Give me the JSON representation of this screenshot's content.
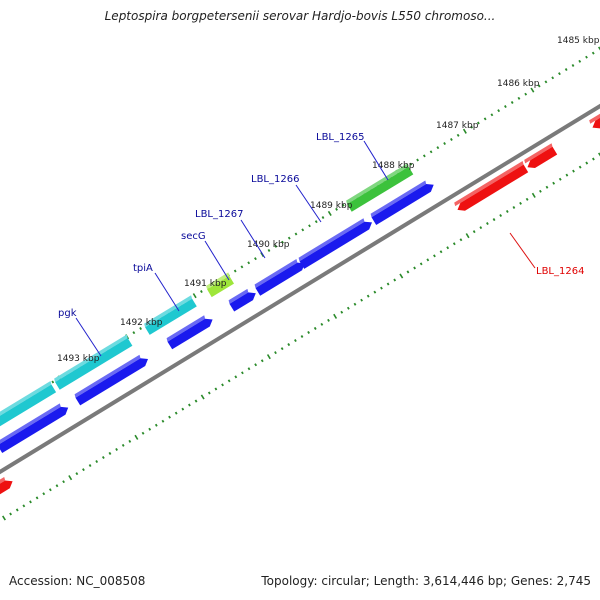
{
  "title": "Leptospira borgpetersenii serovar Hardjo-bovis L550 chromoso...",
  "footer": {
    "accession": "Accession: NC_008508",
    "summary": "Topology: circular; Length: 3,614,446 bp; Genes: 2,745"
  },
  "scale_labels": [
    "1485 kbp",
    "1486 kbp",
    "1487 kbp",
    "1488 kbp",
    "1489 kbp",
    "1490 kbp",
    "1491 kbp",
    "1492 kbp",
    "1493 kbp"
  ],
  "gene_labels": [
    "LBL_1265",
    "LBL_1266",
    "LBL_1267",
    "secG",
    "tpiA",
    "pgk",
    "LBL_1264"
  ],
  "colors": {
    "backbone": "#7a7a7a",
    "forward_cds": "#1a1aee",
    "teal_cds": "#1fc8d0",
    "green_cds": "#3cc23c",
    "lime_cds": "#9ee63a",
    "reverse_cds": "#ee1111",
    "tick": "#2a8a2a",
    "label_forward": "#0a0a9a",
    "label_reverse": "#e00000"
  }
}
